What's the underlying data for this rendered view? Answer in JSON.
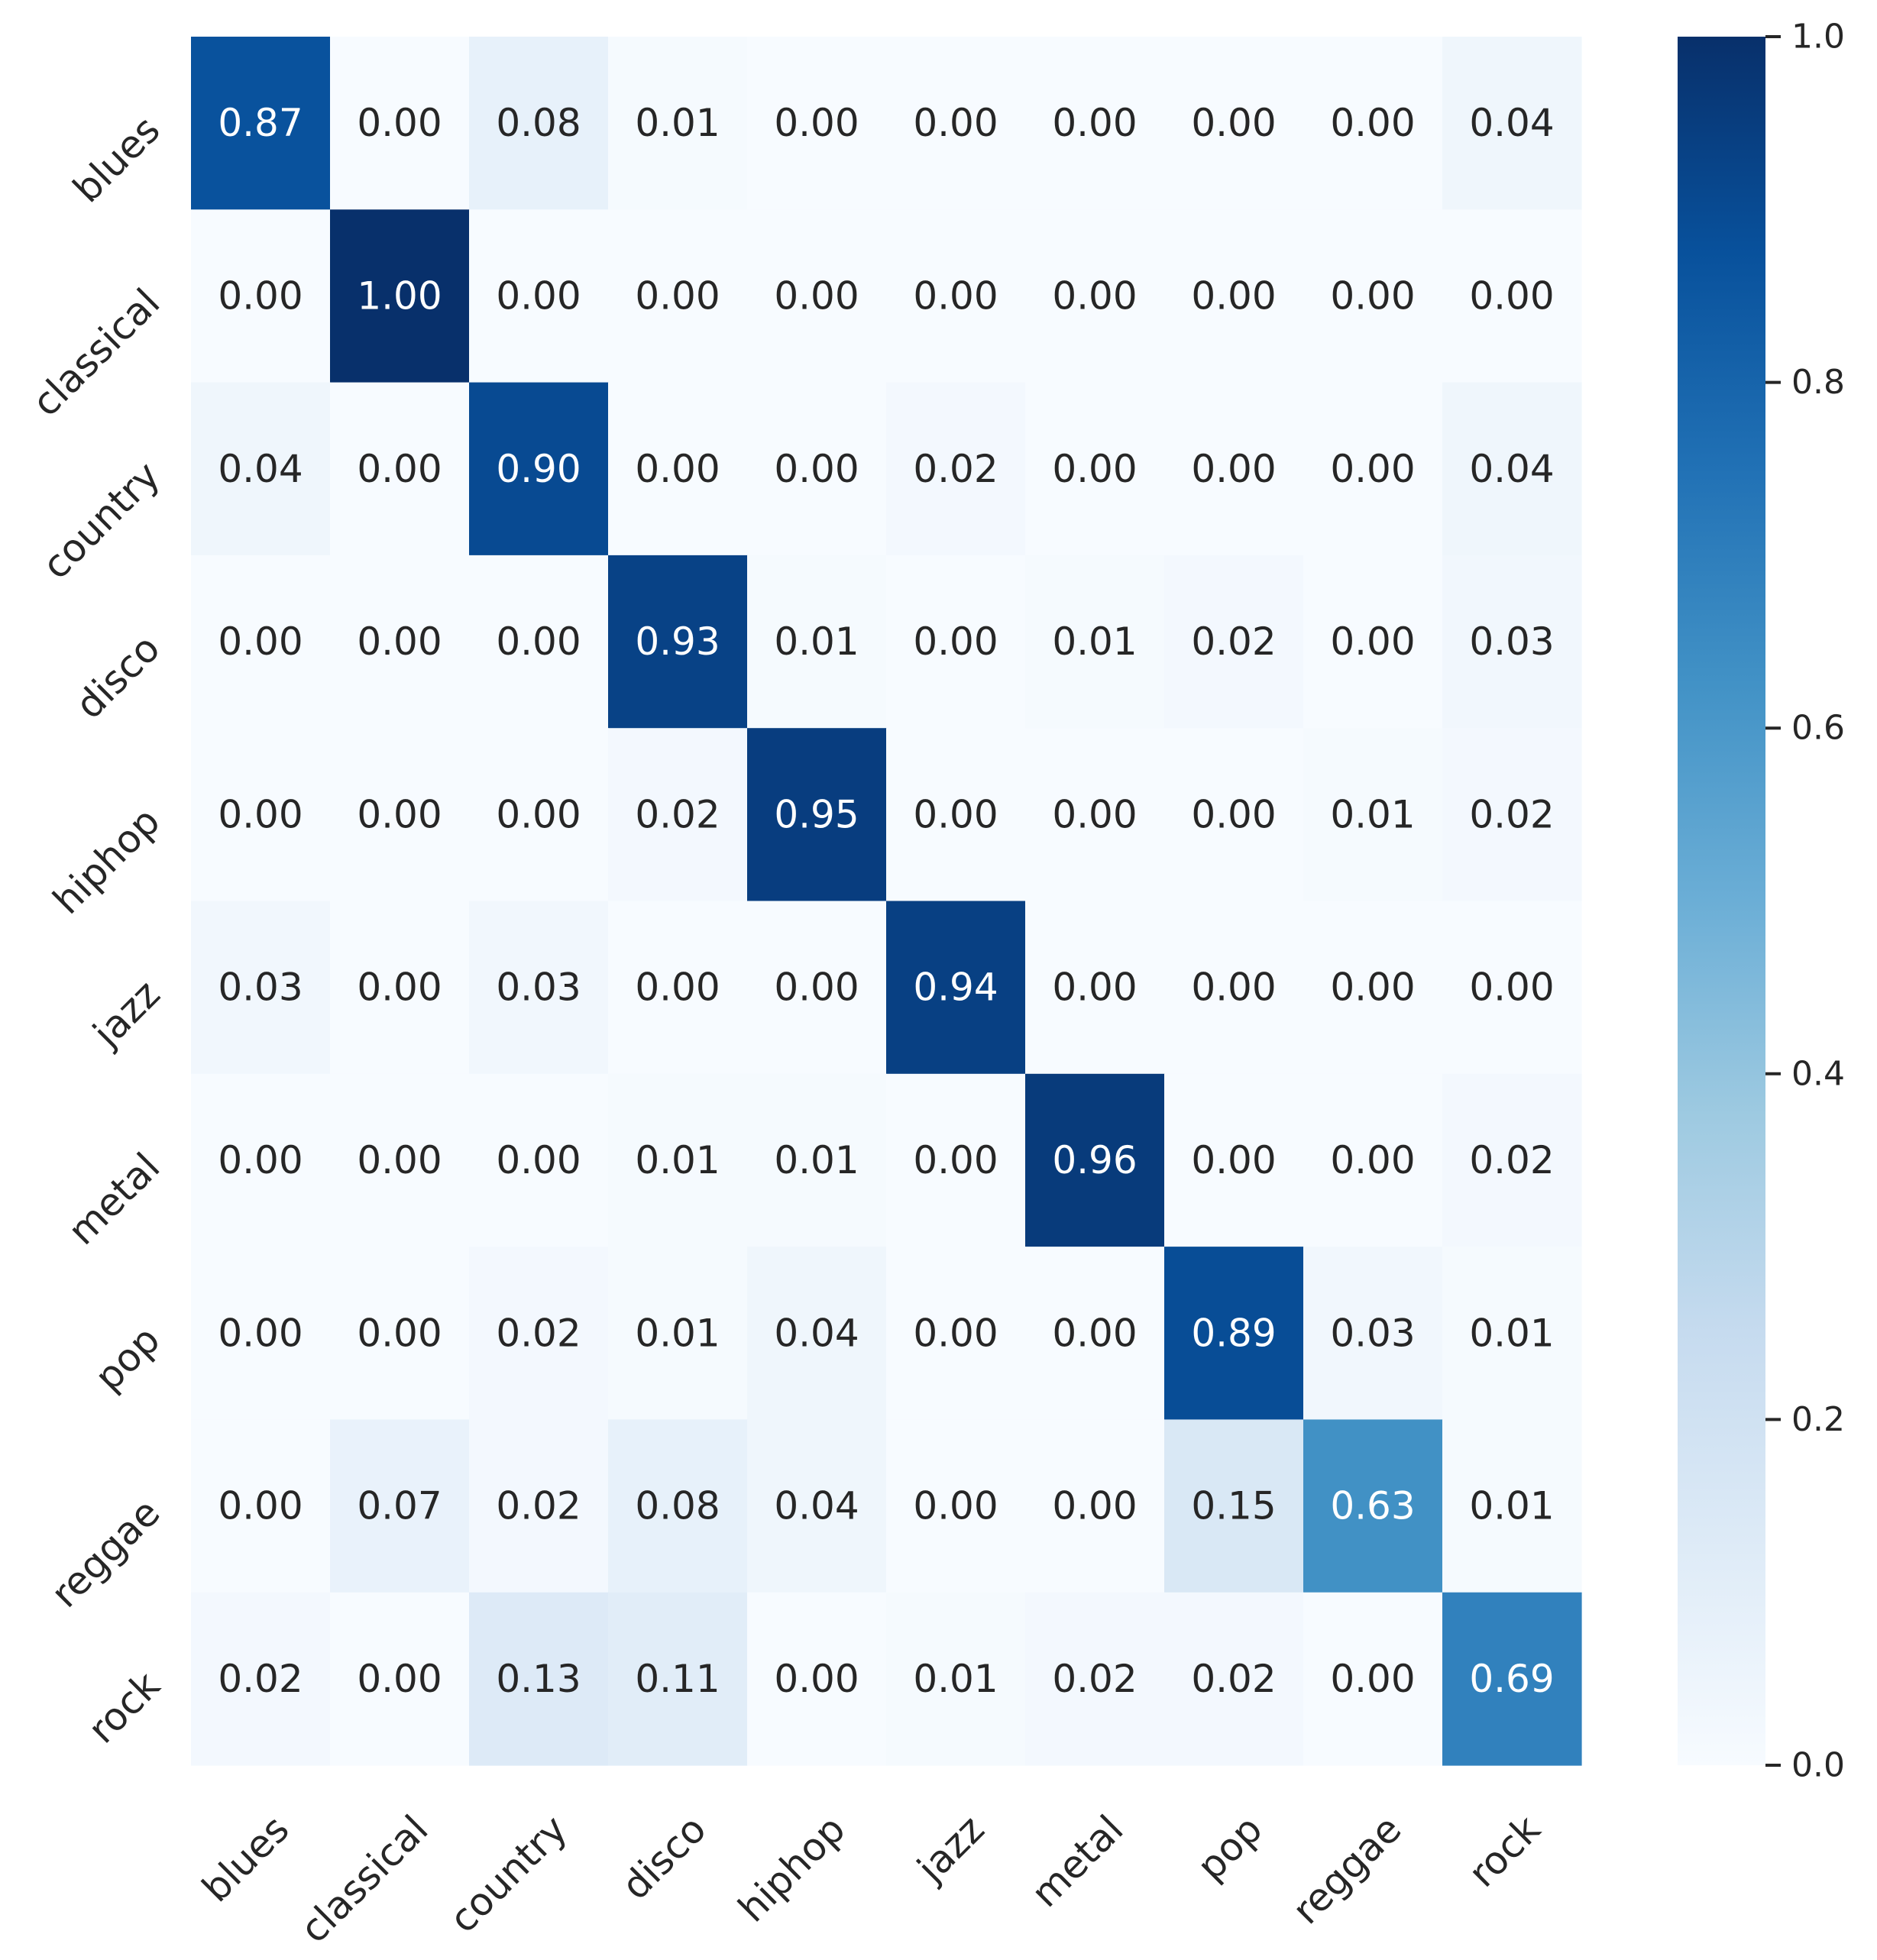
{
  "chart_data": {
    "type": "heatmap",
    "title": "",
    "xlabel": "",
    "ylabel": "",
    "x_categories": [
      "blues",
      "classical",
      "country",
      "disco",
      "hiphop",
      "jazz",
      "metal",
      "pop",
      "reggae",
      "rock"
    ],
    "y_categories": [
      "blues",
      "classical",
      "country",
      "disco",
      "hiphop",
      "jazz",
      "metal",
      "pop",
      "reggae",
      "rock"
    ],
    "values": [
      [
        0.87,
        0.0,
        0.08,
        0.01,
        0.0,
        0.0,
        0.0,
        0.0,
        0.0,
        0.04
      ],
      [
        0.0,
        1.0,
        0.0,
        0.0,
        0.0,
        0.0,
        0.0,
        0.0,
        0.0,
        0.0
      ],
      [
        0.04,
        0.0,
        0.9,
        0.0,
        0.0,
        0.02,
        0.0,
        0.0,
        0.0,
        0.04
      ],
      [
        0.0,
        0.0,
        0.0,
        0.93,
        0.01,
        0.0,
        0.01,
        0.02,
        0.0,
        0.03
      ],
      [
        0.0,
        0.0,
        0.0,
        0.02,
        0.95,
        0.0,
        0.0,
        0.0,
        0.01,
        0.02
      ],
      [
        0.03,
        0.0,
        0.03,
        0.0,
        0.0,
        0.94,
        0.0,
        0.0,
        0.0,
        0.0
      ],
      [
        0.0,
        0.0,
        0.0,
        0.01,
        0.01,
        0.0,
        0.96,
        0.0,
        0.0,
        0.02
      ],
      [
        0.0,
        0.0,
        0.02,
        0.01,
        0.04,
        0.0,
        0.0,
        0.89,
        0.03,
        0.01
      ],
      [
        0.0,
        0.07,
        0.02,
        0.08,
        0.04,
        0.0,
        0.0,
        0.15,
        0.63,
        0.01
      ],
      [
        0.02,
        0.0,
        0.13,
        0.11,
        0.0,
        0.01,
        0.02,
        0.02,
        0.0,
        0.69
      ]
    ],
    "value_format": "0.00",
    "colormap": "Blues",
    "vmin": 0.0,
    "vmax": 1.0,
    "colorbar": {
      "ticks": [
        0.0,
        0.2,
        0.4,
        0.6,
        0.8,
        1.0
      ],
      "tick_labels": [
        "0.0",
        "0.2",
        "0.4",
        "0.6",
        "0.8",
        "1.0"
      ],
      "placement": "right"
    },
    "annot_dark_color": "#262626",
    "annot_light_color": "#ffffff",
    "grid": false
  }
}
